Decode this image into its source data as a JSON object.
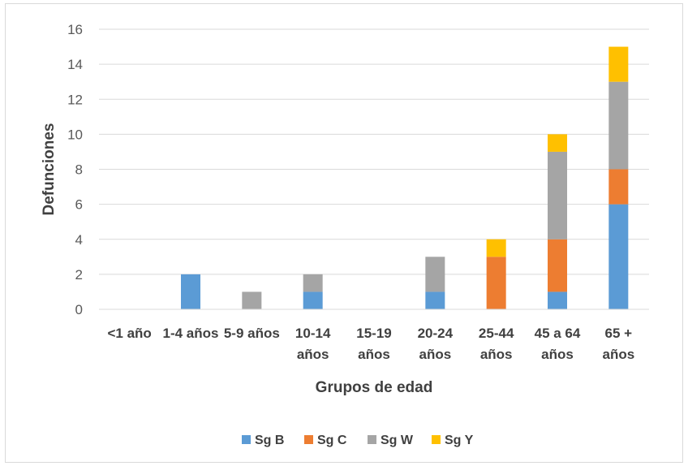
{
  "chart_data": {
    "type": "bar",
    "stacked": true,
    "title": "",
    "xlabel": "Grupos de edad",
    "ylabel": "Defunciones",
    "ylim": [
      0,
      16
    ],
    "yticks": [
      "0",
      "2",
      "4",
      "6",
      "8",
      "10",
      "12",
      "14",
      "16"
    ],
    "grid": true,
    "legend_position": "bottom",
    "categories": [
      [
        "<1 año"
      ],
      [
        "1-4 años"
      ],
      [
        "5-9 años"
      ],
      [
        "10-14",
        "años"
      ],
      [
        "15-19",
        "años"
      ],
      [
        "20-24",
        "años"
      ],
      [
        "25-44",
        "años"
      ],
      [
        "45 a 64",
        "años"
      ],
      [
        "65 +",
        "años"
      ]
    ],
    "series": [
      {
        "name": "Sg B",
        "color": "#5b9bd5",
        "values": [
          0,
          2,
          0,
          1,
          0,
          1,
          0,
          1,
          6
        ]
      },
      {
        "name": "Sg C",
        "color": "#ed7d31",
        "values": [
          0,
          0,
          0,
          0,
          0,
          0,
          3,
          3,
          2
        ]
      },
      {
        "name": "Sg W",
        "color": "#a5a5a5",
        "values": [
          0,
          0,
          1,
          1,
          0,
          2,
          0,
          5,
          5
        ]
      },
      {
        "name": "Sg Y",
        "color": "#ffc000",
        "values": [
          0,
          0,
          0,
          0,
          0,
          0,
          1,
          1,
          2
        ]
      }
    ]
  }
}
